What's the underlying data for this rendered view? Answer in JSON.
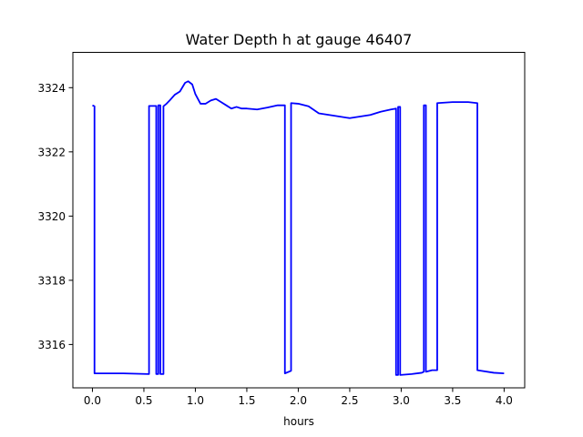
{
  "chart_data": {
    "type": "line",
    "title": "Water Depth h at gauge 46407",
    "xlabel": "hours",
    "ylabel": "",
    "xlim": [
      -0.19,
      4.2
    ],
    "ylim": [
      3314.65,
      3325.1
    ],
    "xticks": [
      0.0,
      0.5,
      1.0,
      1.5,
      2.0,
      2.5,
      3.0,
      3.5,
      4.0
    ],
    "xtick_labels": [
      "0.0",
      "0.5",
      "1.0",
      "1.5",
      "2.0",
      "2.5",
      "3.0",
      "3.5",
      "4.0"
    ],
    "yticks": [
      3316,
      3318,
      3320,
      3322,
      3324
    ],
    "ytick_labels": [
      "3316",
      "3318",
      "3320",
      "3322",
      "3324"
    ],
    "grid": false,
    "legend": "none",
    "series": [
      {
        "color": "#0000ff",
        "x": [
          0.0,
          0.02,
          0.02,
          0.3,
          0.55,
          0.55,
          0.62,
          0.62,
          0.64,
          0.64,
          0.66,
          0.66,
          0.69,
          0.69,
          0.72,
          0.75,
          0.8,
          0.85,
          0.9,
          0.93,
          0.97,
          1.0,
          1.05,
          1.1,
          1.15,
          1.2,
          1.25,
          1.3,
          1.35,
          1.4,
          1.45,
          1.5,
          1.6,
          1.7,
          1.8,
          1.87,
          1.87,
          1.93,
          1.93,
          2.0,
          2.1,
          2.2,
          2.3,
          2.4,
          2.5,
          2.6,
          2.7,
          2.8,
          2.9,
          2.95,
          2.95,
          2.97,
          2.97,
          2.99,
          2.99,
          3.1,
          3.2,
          3.22,
          3.22,
          3.24,
          3.24,
          3.3,
          3.35,
          3.35,
          3.5,
          3.65,
          3.74,
          3.74,
          3.9,
          4.0
        ],
        "y": [
          3323.45,
          3323.42,
          3315.1,
          3315.1,
          3315.08,
          3323.43,
          3323.43,
          3315.08,
          3315.08,
          3323.45,
          3323.45,
          3315.08,
          3315.08,
          3323.42,
          3323.5,
          3323.6,
          3323.78,
          3323.88,
          3324.15,
          3324.2,
          3324.1,
          3323.8,
          3323.5,
          3323.5,
          3323.6,
          3323.65,
          3323.55,
          3323.45,
          3323.35,
          3323.4,
          3323.35,
          3323.35,
          3323.32,
          3323.38,
          3323.45,
          3323.45,
          3315.1,
          3315.18,
          3323.52,
          3323.5,
          3323.42,
          3323.2,
          3323.15,
          3323.1,
          3323.05,
          3323.1,
          3323.15,
          3323.25,
          3323.32,
          3323.35,
          3315.05,
          3315.05,
          3323.4,
          3323.4,
          3315.05,
          3315.08,
          3315.12,
          3315.15,
          3323.45,
          3323.45,
          3315.15,
          3315.2,
          3315.2,
          3323.52,
          3323.55,
          3323.55,
          3323.52,
          3315.2,
          3315.12,
          3315.1
        ]
      }
    ]
  }
}
